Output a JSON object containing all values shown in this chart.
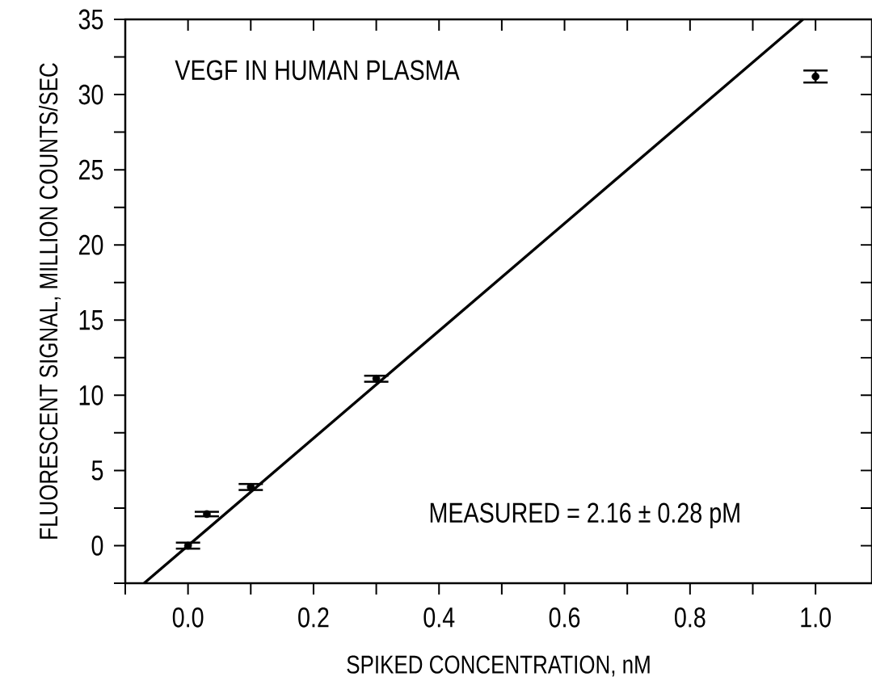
{
  "chart_data": {
    "type": "scatter",
    "xlabel": "SPIKED CONCENTRATION, nM",
    "ylabel": "FLUORESCENT SIGNAL, MILLION COUNTS/SEC",
    "annotations": [
      "VEGF IN HUMAN PLASMA",
      "MEASURED = 2.16 ± 0.28 pM"
    ],
    "xlim": [
      -0.1,
      1.09
    ],
    "ylim": [
      -2.5,
      35
    ],
    "xticks": [
      {
        "value": -0.1,
        "label": null
      },
      {
        "value": 0.0,
        "label": "0.0"
      },
      {
        "value": 0.1,
        "label": null
      },
      {
        "value": 0.2,
        "label": "0.2"
      },
      {
        "value": 0.3,
        "label": null
      },
      {
        "value": 0.4,
        "label": "0.4"
      },
      {
        "value": 0.5,
        "label": null
      },
      {
        "value": 0.6,
        "label": "0.6"
      },
      {
        "value": 0.7,
        "label": null
      },
      {
        "value": 0.8,
        "label": "0.8"
      },
      {
        "value": 0.9,
        "label": null
      },
      {
        "value": 1.0,
        "label": "1.0"
      }
    ],
    "yticks": [
      {
        "value": -2.5,
        "label": null
      },
      0,
      {
        "value": 2.5,
        "label": null
      },
      5,
      {
        "value": 7.5,
        "label": null
      },
      10,
      {
        "value": 12.5,
        "label": null
      },
      15,
      {
        "value": 17.5,
        "label": null
      },
      20,
      {
        "value": 22.5,
        "label": null
      },
      25,
      {
        "value": 27.5,
        "label": null
      },
      30,
      {
        "value": 32.5,
        "label": null
      },
      35
    ],
    "grid": false,
    "series": [
      {
        "color": "#000000",
        "marker": "circle",
        "x": [
          0.0,
          0.03,
          0.1,
          0.3,
          1.0
        ],
        "values": [
          0.0,
          2.1,
          3.9,
          11.1,
          31.2
        ],
        "errors": [
          0.2,
          0.15,
          0.2,
          0.2,
          0.4
        ]
      },
      {
        "type": "line",
        "color": "#000000",
        "marker": "none",
        "line_style": "solid",
        "x": [
          -0.07,
          0.98
        ],
        "values": [
          -2.5,
          35
        ]
      }
    ]
  }
}
